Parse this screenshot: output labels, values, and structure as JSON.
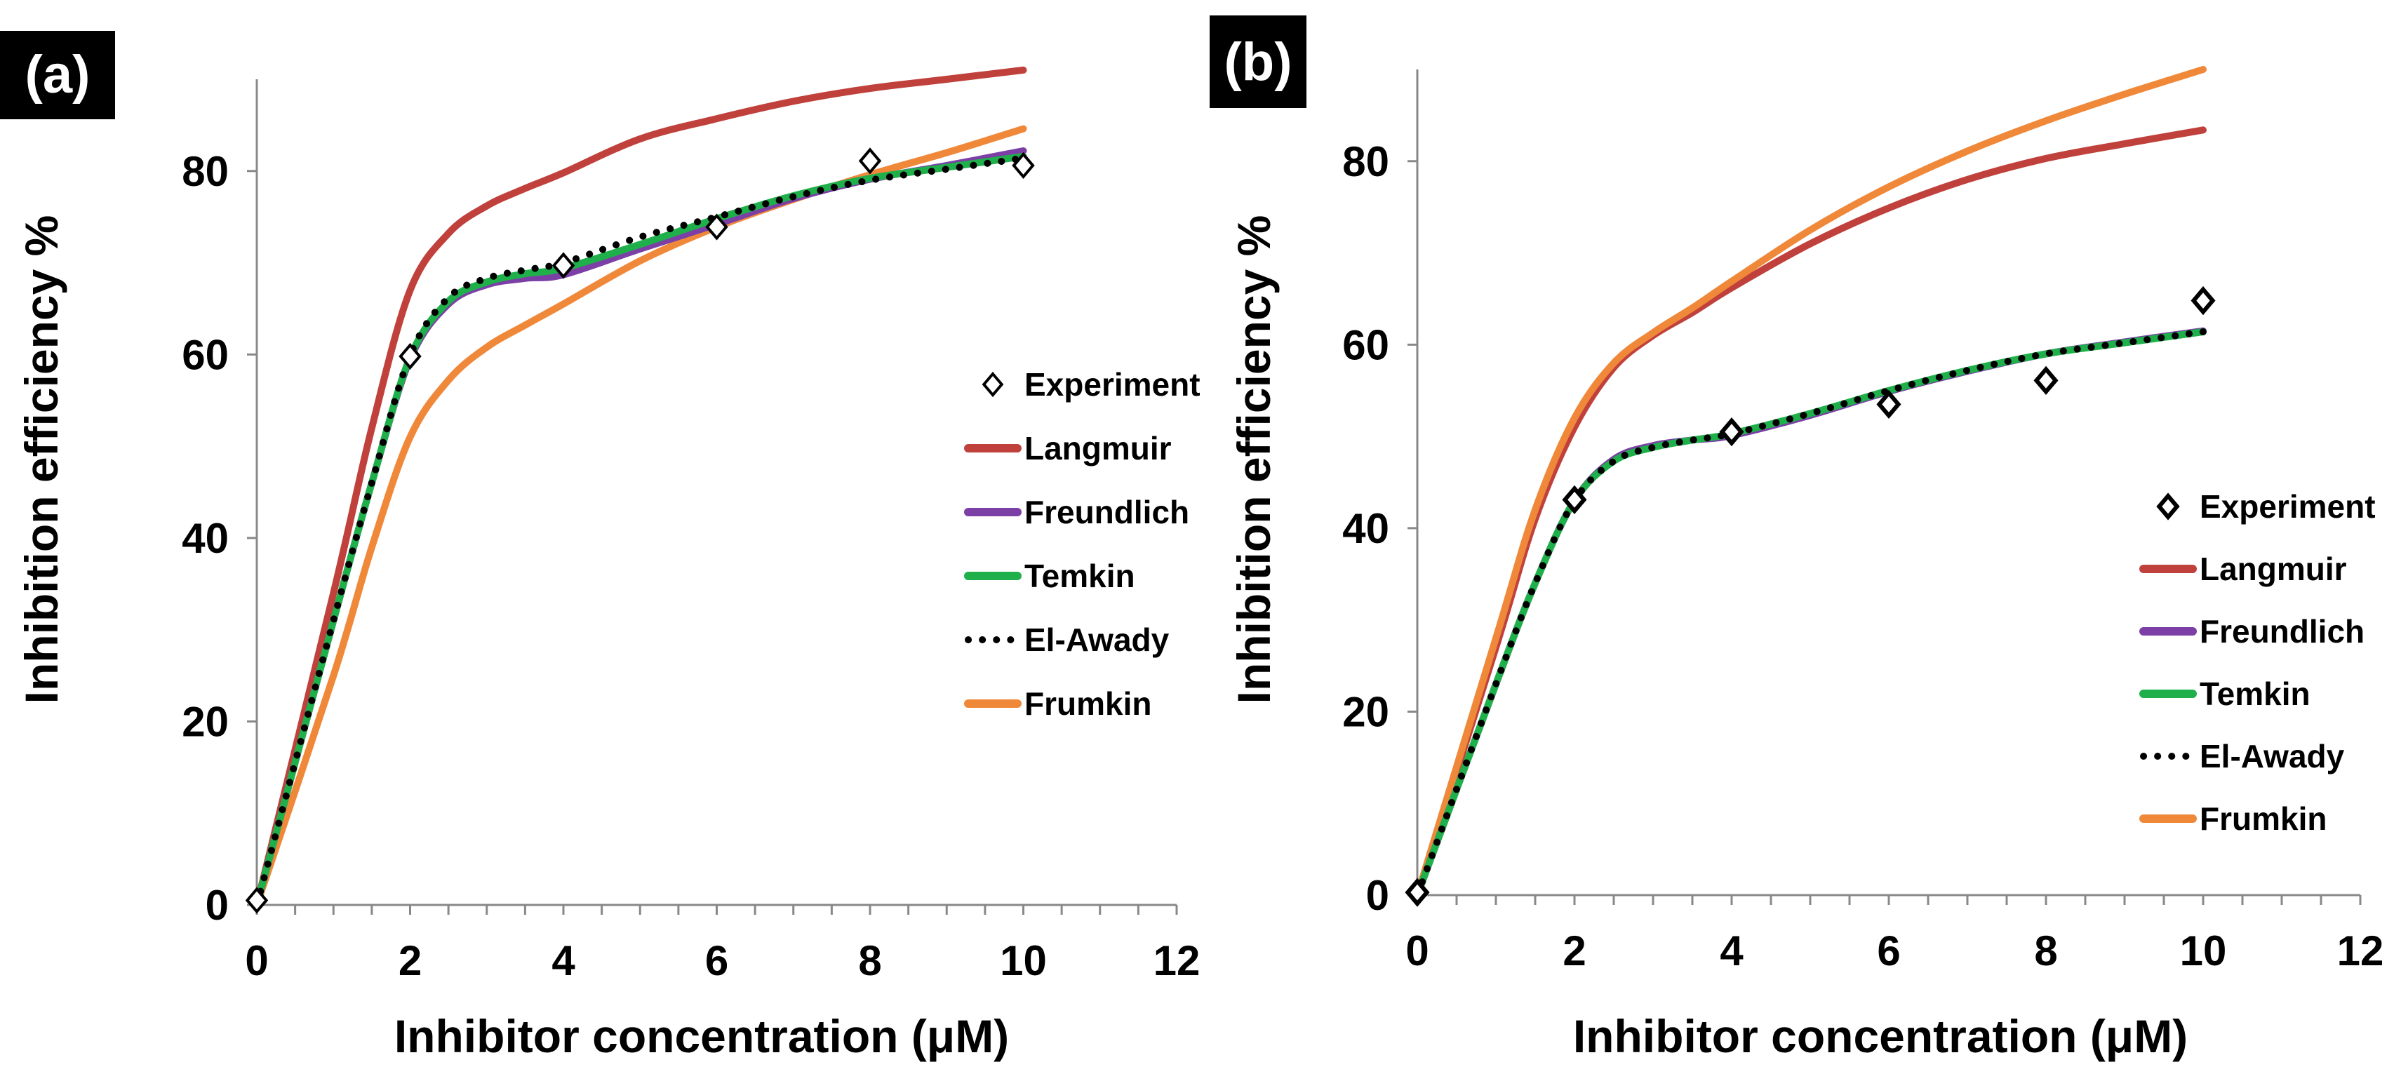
{
  "figure": {
    "panels": [
      "a",
      "b"
    ]
  },
  "chart_data": [
    {
      "panel_label": "(a)",
      "type": "line",
      "title": "",
      "xlabel": "Inhibitor concentration (μM)",
      "ylabel": "Inhibition efficiency %",
      "xlim": [
        0,
        12
      ],
      "ylim": [
        0,
        90
      ],
      "xticks": [
        "0",
        "2",
        "4",
        "6",
        "8",
        "10",
        "12"
      ],
      "yticks": [
        "0",
        "20",
        "40",
        "60",
        "80"
      ],
      "grid": false,
      "legend_placement": "right",
      "series": [
        {
          "name": "Experiment",
          "style": "markers",
          "marker": "diamond",
          "color": "#000000",
          "x": [
            0,
            2,
            4,
            6,
            8,
            10
          ],
          "y": [
            0.5,
            59.8,
            69.7,
            73.9,
            81.1,
            80.6
          ]
        },
        {
          "name": "Langmuir",
          "style": "line",
          "color": "#C0413C",
          "x": [
            0,
            1,
            1.5,
            2,
            2.5,
            3,
            3.5,
            4,
            5,
            6,
            7,
            8,
            9,
            10
          ],
          "y": [
            0,
            34,
            52,
            67,
            73.2,
            76.2,
            78.1,
            79.8,
            83.5,
            85.7,
            87.6,
            89.0,
            90.0,
            91.0
          ]
        },
        {
          "name": "Freundlich",
          "style": "line",
          "color": "#7B3FA6",
          "x": [
            0,
            1,
            1.5,
            2,
            2.5,
            3,
            3.5,
            4,
            5,
            6,
            7,
            8,
            9,
            10
          ],
          "y": [
            0,
            31,
            46,
            59.5,
            65.5,
            67.6,
            68.3,
            68.7,
            71.5,
            74.2,
            77.0,
            79.1,
            80.6,
            82.2
          ]
        },
        {
          "name": "Temkin",
          "style": "line",
          "color": "#1FAF4B",
          "x": [
            0,
            1,
            1.5,
            2,
            2.5,
            3,
            3.5,
            4,
            5,
            6,
            7,
            8,
            9,
            10
          ],
          "y": [
            0,
            31,
            46,
            59.7,
            65.8,
            67.9,
            68.8,
            69.4,
            72.0,
            74.8,
            77.3,
            79.2,
            80.4,
            81.6
          ]
        },
        {
          "name": "El-Awady",
          "style": "dotted",
          "color": "#000000",
          "x": [
            0,
            1,
            1.5,
            2,
            2.5,
            3,
            3.5,
            4,
            5,
            6,
            7,
            8,
            9,
            10
          ],
          "y": [
            0,
            31,
            46,
            59.9,
            66.2,
            68.3,
            69.2,
            70.0,
            72.8,
            75.0,
            77.2,
            79.0,
            80.2,
            81.4
          ]
        },
        {
          "name": "Frumkin",
          "style": "line",
          "color": "#F0883A",
          "x": [
            0,
            1,
            1.5,
            2,
            2.5,
            3,
            3.5,
            4,
            5,
            6,
            7,
            8,
            9,
            10
          ],
          "y": [
            0,
            25,
            39,
            51,
            57.2,
            60.8,
            63.2,
            65.5,
            70.2,
            73.9,
            76.9,
            79.6,
            82.0,
            84.6
          ]
        }
      ]
    },
    {
      "panel_label": "(b)",
      "type": "line",
      "title": "",
      "xlabel": "Inhibitor concentration (μM)",
      "ylabel": "Inhibition efficiency %",
      "xlim": [
        0,
        12
      ],
      "ylim": [
        0,
        90
      ],
      "xticks": [
        "0",
        "2",
        "4",
        "6",
        "8",
        "10",
        "12"
      ],
      "yticks": [
        "0",
        "20",
        "40",
        "60",
        "80"
      ],
      "grid": false,
      "legend_placement": "right",
      "series": [
        {
          "name": "Experiment",
          "style": "markers",
          "marker": "diamond",
          "color": "#000000",
          "x": [
            0,
            2,
            4,
            6,
            8,
            10
          ],
          "y": [
            0.3,
            43.1,
            50.5,
            53.5,
            56.1,
            64.8
          ]
        },
        {
          "name": "Langmuir",
          "style": "line",
          "color": "#C0413C",
          "x": [
            0,
            1,
            1.5,
            2,
            2.5,
            3,
            3.5,
            4,
            5,
            6,
            7,
            8,
            9,
            10
          ],
          "y": [
            0,
            27,
            41,
            51,
            57.5,
            61.0,
            63.5,
            66.2,
            71.0,
            74.9,
            78.0,
            80.3,
            81.9,
            83.4
          ]
        },
        {
          "name": "Freundlich",
          "style": "line",
          "color": "#7B3FA6",
          "x": [
            0,
            1,
            1.5,
            2,
            2.5,
            3,
            3.5,
            4,
            5,
            6,
            7,
            8,
            9,
            10
          ],
          "y": [
            0,
            23,
            34,
            43,
            47.5,
            49.0,
            49.6,
            50.1,
            52.3,
            54.9,
            57.1,
            59.0,
            60.3,
            61.5
          ]
        },
        {
          "name": "Temkin",
          "style": "line",
          "color": "#1FAF4B",
          "x": [
            0,
            1,
            1.5,
            2,
            2.5,
            3,
            3.5,
            4,
            5,
            6,
            7,
            8,
            9,
            10
          ],
          "y": [
            0,
            23,
            34,
            43,
            47.3,
            48.8,
            49.6,
            50.3,
            52.5,
            55.0,
            57.2,
            59.0,
            60.2,
            61.4
          ]
        },
        {
          "name": "El-Awady",
          "style": "dotted",
          "color": "#000000",
          "x": [
            0,
            1,
            1.5,
            2,
            2.5,
            3,
            3.5,
            4,
            5,
            6,
            7,
            8,
            9,
            10
          ],
          "y": [
            0,
            23,
            34,
            43,
            47.3,
            48.8,
            49.6,
            50.3,
            52.5,
            55.0,
            57.2,
            59.0,
            60.2,
            61.4
          ]
        },
        {
          "name": "Frumkin",
          "style": "line",
          "color": "#F0883A",
          "x": [
            0,
            1,
            1.5,
            2,
            2.5,
            3,
            3.5,
            4,
            5,
            6,
            7,
            8,
            9,
            10
          ],
          "y": [
            0,
            28,
            42,
            52,
            58.0,
            61.3,
            64.0,
            66.9,
            72.5,
            77.2,
            81.1,
            84.4,
            87.3,
            90.0
          ]
        }
      ]
    }
  ]
}
